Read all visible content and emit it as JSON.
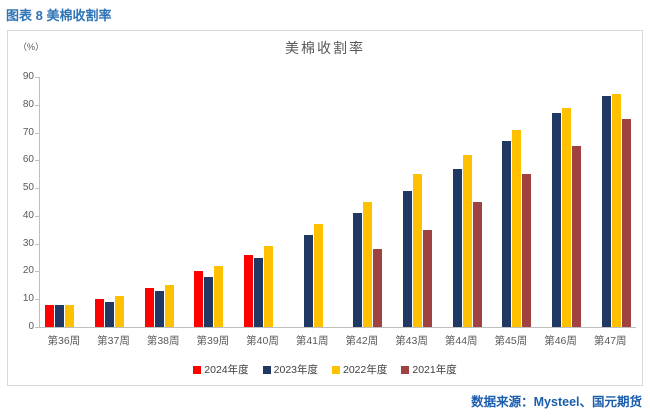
{
  "page": {
    "figure_caption": "图表 8 美棉收割率",
    "source_note": "数据来源：Mysteel、国元期货"
  },
  "chart": {
    "title": "美棉收割率",
    "unit_label": "（%）"
  },
  "colors": {
    "caption_blue": "#2E74B5",
    "source_blue": "#1B5EAD",
    "axis_gray": "#BFBFBF",
    "label_gray": "#595959",
    "panel_border": "#D9D9D9"
  },
  "chart_data": {
    "type": "bar",
    "title": "美棉收割率",
    "xlabel": "",
    "ylabel": "（%）",
    "ylim": [
      0,
      90
    ],
    "ytick_step": 10,
    "grid": false,
    "legend_position": "bottom",
    "categories": [
      "第36周",
      "第37周",
      "第38周",
      "第39周",
      "第40周",
      "第41周",
      "第42周",
      "第43周",
      "第44周",
      "第45周",
      "第46周",
      "第47周"
    ],
    "series": [
      {
        "name": "2024年度",
        "color": "#FF0000",
        "values": [
          8,
          10,
          14,
          20,
          26,
          null,
          null,
          null,
          null,
          null,
          null,
          null
        ]
      },
      {
        "name": "2023年度",
        "color": "#1F3864",
        "values": [
          8,
          9,
          13,
          18,
          25,
          33,
          41,
          49,
          57,
          67,
          77,
          83
        ]
      },
      {
        "name": "2022年度",
        "color": "#FFC000",
        "values": [
          8,
          11,
          15,
          22,
          29,
          37,
          45,
          55,
          62,
          71,
          79,
          84
        ]
      },
      {
        "name": "2021年度",
        "color": "#A04242",
        "values": [
          null,
          null,
          null,
          null,
          null,
          null,
          28,
          35,
          45,
          55,
          65,
          75
        ]
      }
    ]
  }
}
